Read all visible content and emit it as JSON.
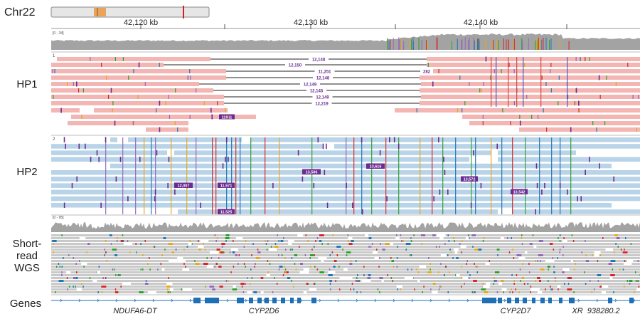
{
  "chromosome": {
    "name": "Chr22"
  },
  "ruler": {
    "ticks": [
      "42,120 kb",
      "42,130 kb",
      "42,140 kb"
    ]
  },
  "tracks": {
    "hp1_label": "HP1",
    "hp2_label": "HP2",
    "sr_label_lines": [
      "Short-",
      "read",
      "WGS"
    ],
    "genes_label": "Genes",
    "lr_coverage_range": "[0 - 34]",
    "sr_coverage_range": "[0 - 95]",
    "hp1_index": "1",
    "hp2_index": "2"
  },
  "hp1_deletion_labels": [
    "12,148",
    "12,150",
    "11,251",
    "12,148",
    "12,149",
    "12,145",
    "12,149",
    "12,219"
  ],
  "hp1_small_label": "282",
  "hp1_insertion_label": "11911",
  "hp2_insertion_labels": [
    "13,506",
    "13,616",
    "12,007",
    "11,571",
    "13,572",
    "13,542",
    "11,525"
  ],
  "genes": [
    "NDUFA6-DT",
    "CYP2D6",
    "CYP2D7",
    "XR_938280.2"
  ],
  "colors": {
    "hp1_read": "#f4b6b3",
    "hp2_read": "#b9d3e8",
    "sr_read": "#c9c9c9",
    "coverage": "#a3a3a3",
    "insertion": "#6a2c91",
    "gene": "#1f6fb5",
    "ideogram_highlight": "#e9a35a",
    "ideogram_marker": "#d62020"
  }
}
